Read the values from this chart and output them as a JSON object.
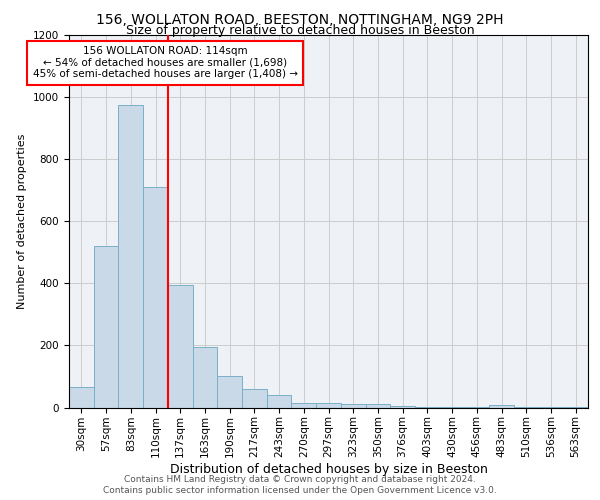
{
  "title1": "156, WOLLATON ROAD, BEESTON, NOTTINGHAM, NG9 2PH",
  "title2": "Size of property relative to detached houses in Beeston",
  "xlabel": "Distribution of detached houses by size in Beeston",
  "ylabel": "Number of detached properties",
  "categories": [
    "30sqm",
    "57sqm",
    "83sqm",
    "110sqm",
    "137sqm",
    "163sqm",
    "190sqm",
    "217sqm",
    "243sqm",
    "270sqm",
    "297sqm",
    "323sqm",
    "350sqm",
    "376sqm",
    "403sqm",
    "430sqm",
    "456sqm",
    "483sqm",
    "510sqm",
    "536sqm",
    "563sqm"
  ],
  "values": [
    65,
    520,
    975,
    710,
    395,
    195,
    100,
    60,
    40,
    15,
    15,
    10,
    10,
    5,
    2,
    2,
    2,
    8,
    2,
    2,
    2
  ],
  "bar_color": "#c9d9e8",
  "bar_edge_color": "#7bafc8",
  "red_line_index": 3.5,
  "annotation_text": "156 WOLLATON ROAD: 114sqm\n← 54% of detached houses are smaller (1,698)\n45% of semi-detached houses are larger (1,408) →",
  "annotation_box_color": "white",
  "annotation_box_edge_color": "red",
  "footnote_line1": "Contains HM Land Registry data © Crown copyright and database right 2024.",
  "footnote_line2": "Contains public sector information licensed under the Open Government Licence v3.0.",
  "ylim": [
    0,
    1200
  ],
  "yticks": [
    0,
    200,
    400,
    600,
    800,
    1000,
    1200
  ],
  "grid_color": "#cccccc",
  "background_color": "#eef2f7",
  "title1_fontsize": 10,
  "title2_fontsize": 9,
  "xlabel_fontsize": 9,
  "ylabel_fontsize": 8,
  "tick_fontsize": 7.5,
  "annotation_fontsize": 7.5,
  "footnote_fontsize": 6.5
}
